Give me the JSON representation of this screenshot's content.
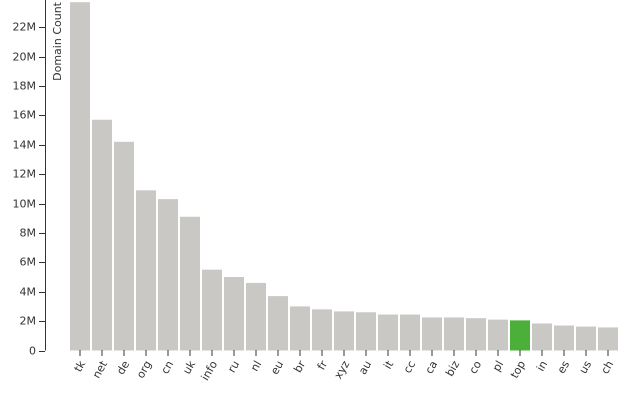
{
  "chart_data": {
    "type": "bar",
    "y_label": "Domain Count",
    "categories": [
      "tk",
      "net",
      "de",
      "org",
      "cn",
      "uk",
      "info",
      "ru",
      "nl",
      "eu",
      "br",
      "fr",
      "xyz",
      "au",
      "it",
      "cc",
      "ca",
      "biz",
      "co",
      "pl",
      "top",
      "in",
      "es",
      "us",
      "ch"
    ],
    "values": [
      23700000,
      15700000,
      14200000,
      10900000,
      10300000,
      9100000,
      5500000,
      5000000,
      4600000,
      3700000,
      3000000,
      2800000,
      2660000,
      2600000,
      2450000,
      2450000,
      2250000,
      2250000,
      2200000,
      2100000,
      2050000,
      1840000,
      1700000,
      1630000,
      1570000
    ],
    "colors": [
      "#c9c8c4",
      "#c9c8c4",
      "#c9c8c4",
      "#c9c8c4",
      "#c9c8c4",
      "#c9c8c4",
      "#c9c8c4",
      "#c9c8c4",
      "#c9c8c4",
      "#c9c8c4",
      "#c9c8c4",
      "#c9c8c4",
      "#c9c8c4",
      "#c9c8c4",
      "#c9c8c4",
      "#c9c8c4",
      "#c9c8c4",
      "#c9c8c4",
      "#c9c8c4",
      "#c9c8c4",
      "#4caf3a",
      "#c9c8c4",
      "#c9c8c4",
      "#c9c8c4",
      "#c9c8c4"
    ],
    "ylim": [
      0,
      23850000
    ],
    "yticks": [
      0,
      {
        "value": 2000000,
        "label": "2M"
      },
      {
        "value": 4000000,
        "label": "4M"
      },
      {
        "value": 6000000,
        "label": "6M"
      },
      {
        "value": 8000000,
        "label": "8M"
      },
      {
        "value": 10000000,
        "label": "10M"
      },
      {
        "value": 12000000,
        "label": "12M"
      },
      {
        "value": 14000000,
        "label": "14M"
      },
      {
        "value": 16000000,
        "label": "16M"
      },
      {
        "value": 18000000,
        "label": "18M"
      },
      {
        "value": 20000000,
        "label": "20M"
      },
      {
        "value": 22000000,
        "label": "22M"
      }
    ]
  }
}
